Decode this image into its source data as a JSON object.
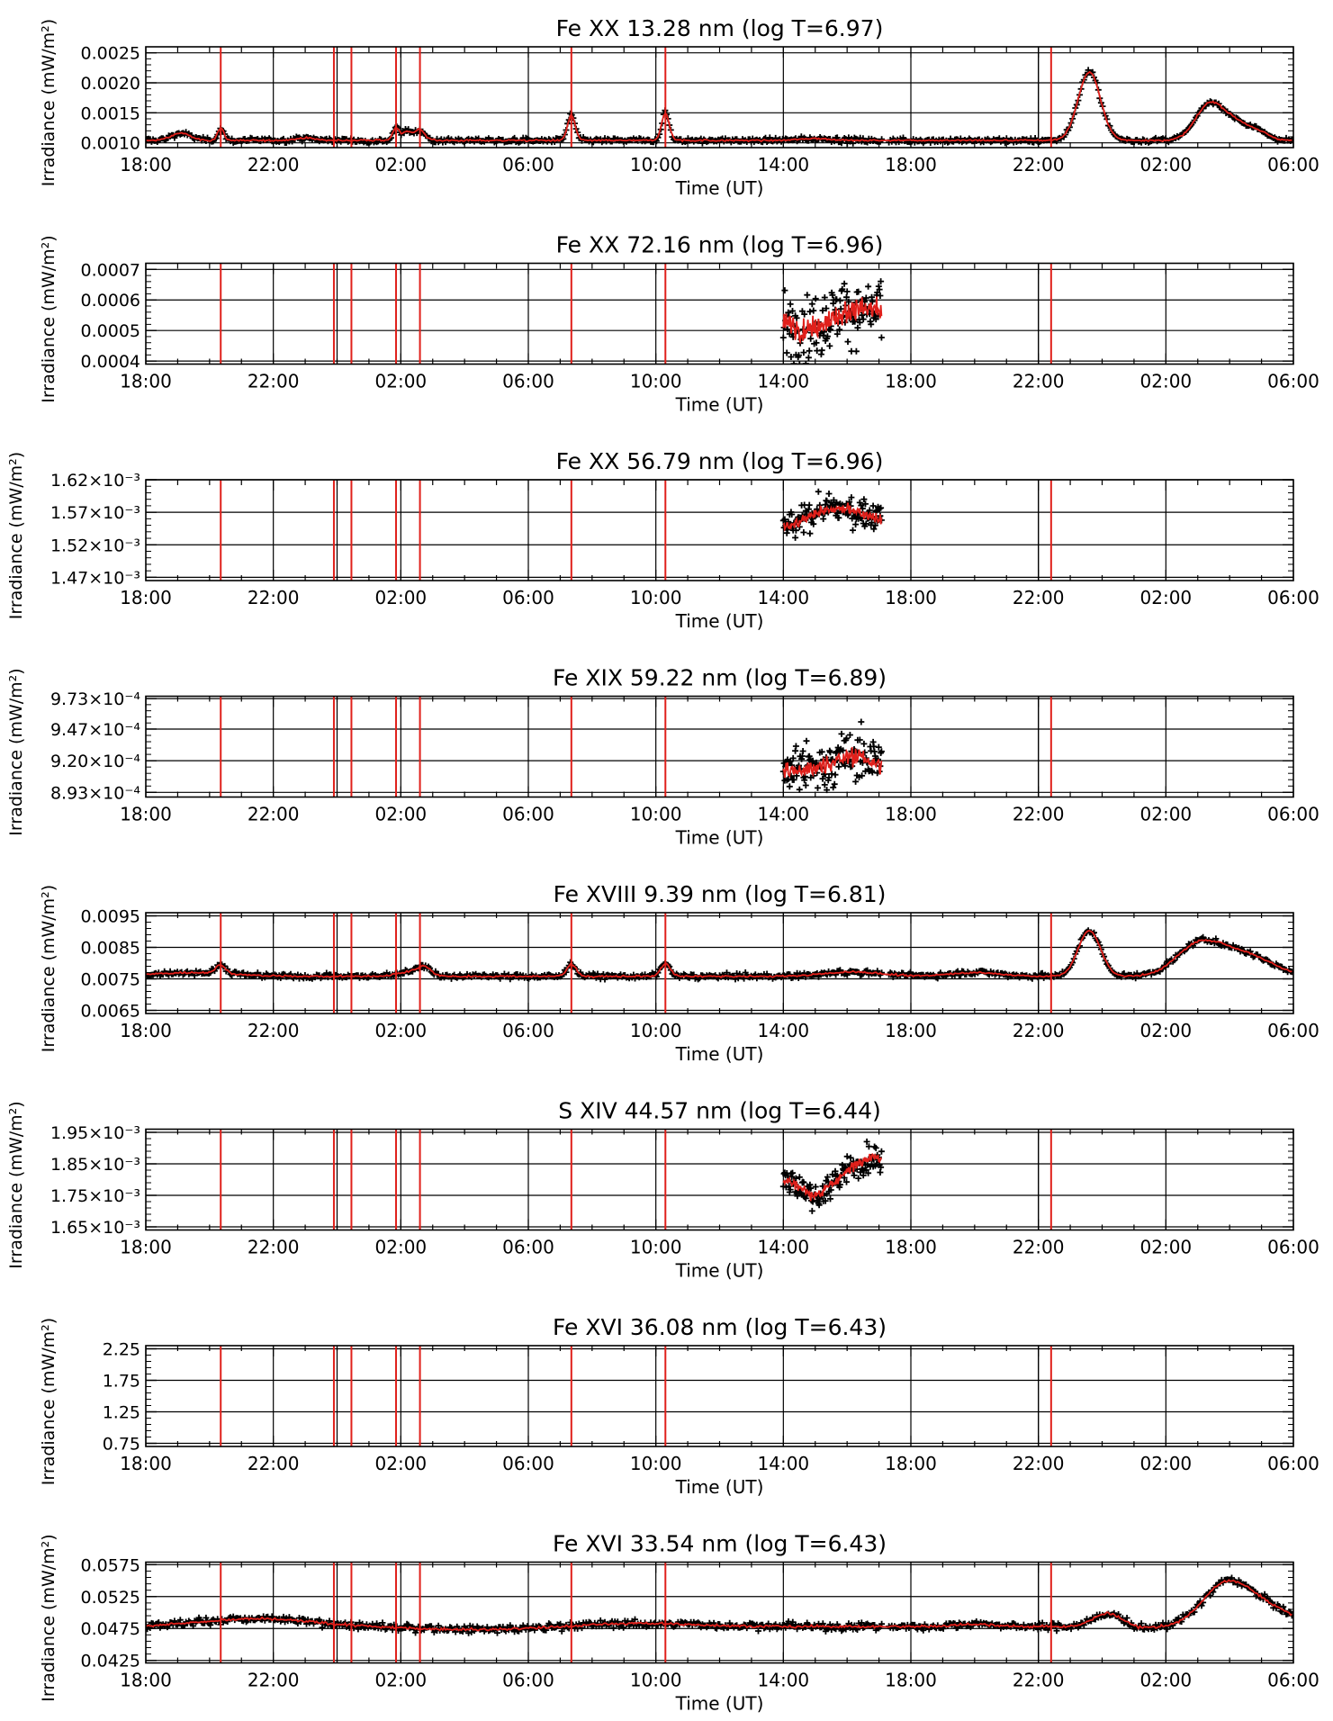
{
  "figure": {
    "xlabel": "Time (UT)",
    "ylabel": "Irradiance (mW/m²)",
    "x_tick_labels": [
      "18:00",
      "22:00",
      "02:00",
      "06:00",
      "10:00",
      "14:00",
      "18:00",
      "22:00",
      "02:00",
      "06:00"
    ],
    "x_range_hours": [
      0,
      36
    ],
    "grid_hours": [
      4,
      8,
      12,
      16,
      20,
      24,
      28,
      32
    ],
    "day_boundary_hours": [
      6.0,
      28.0
    ],
    "event_line_hours": [
      2.35,
      5.9,
      6.45,
      7.85,
      8.6,
      13.35,
      16.3,
      28.4
    ],
    "colors": {
      "data_points": "#000000",
      "smoothed_line": "#e0201b",
      "event_lines": "#e0201b",
      "grid": "#000000"
    }
  },
  "chart_data": [
    {
      "type": "scatter",
      "title": "Fe XX 13.28 nm (log T=6.97)",
      "xlabel": "Time (UT)",
      "ylabel": "Irradiance (mW/m²)",
      "ylim": [
        0.00092,
        0.0026
      ],
      "yticks": [
        0.001,
        0.0015,
        0.002,
        0.0025
      ],
      "ytick_labels": [
        "0.0010",
        "0.0015",
        "0.0020",
        "0.0025"
      ],
      "coverage_hours": [
        [
          0,
          36
        ]
      ],
      "noise": 2e-05,
      "series": [
        {
          "name": "",
          "baseline": 0.00104,
          "peaks": [
            [
              1.1,
              0.00012,
              0.3
            ],
            [
              2.35,
              0.0002,
              0.1
            ],
            [
              5.0,
              4e-05,
              0.3
            ],
            [
              7.85,
              0.0002,
              0.1
            ],
            [
              8.2,
              0.00015,
              0.15
            ],
            [
              8.6,
              0.00018,
              0.15
            ],
            [
              13.35,
              0.00042,
              0.12
            ],
            [
              16.3,
              0.00045,
              0.12
            ],
            [
              21.0,
              3e-05,
              0.5
            ],
            [
              29.6,
              0.00114,
              0.35
            ],
            [
              33.4,
              0.00062,
              0.45
            ],
            [
              34.3,
              0.00025,
              0.4
            ],
            [
              35.0,
              0.0001,
              0.3
            ]
          ]
        }
      ]
    },
    {
      "type": "scatter",
      "title": "Fe XX 72.16 nm (log T=6.96)",
      "xlabel": "Time (UT)",
      "ylabel": "Irradiance (mW/m²)",
      "ylim": [
        0.00039,
        0.00072
      ],
      "yticks": [
        0.0004,
        0.0005,
        0.0006,
        0.0007
      ],
      "ytick_labels": [
        "0.0004",
        "0.0005",
        "0.0006",
        "0.0007"
      ],
      "coverage_hours": [
        [
          20.0,
          23.1
        ]
      ],
      "noise": 5.5e-05,
      "series": [
        {
          "name": "",
          "baseline": 0.00053,
          "peaks": [
            [
              22.5,
              4e-05,
              0.7
            ],
            [
              20.7,
              -3e-05,
              0.4
            ]
          ]
        }
      ]
    },
    {
      "type": "scatter",
      "title": "Fe XX 56.79 nm (log T=6.96)",
      "xlabel": "Time (UT)",
      "ylabel": "Irradiance (mW/m²)",
      "ylim": [
        0.001465,
        0.00162
      ],
      "yticks": [
        0.00147,
        0.00152,
        0.00157,
        0.00162
      ],
      "ytick_labels": [
        "1.47×10⁻³",
        "1.52×10⁻³",
        "1.57×10⁻³",
        "1.62×10⁻³"
      ],
      "coverage_hours": [
        [
          20.0,
          23.1
        ]
      ],
      "noise": 1.1e-05,
      "series": [
        {
          "name": "",
          "baseline": 0.00155,
          "peaks": [
            [
              21.7,
              2.5e-05,
              1.0
            ],
            [
              20.3,
              -1e-05,
              0.3
            ]
          ]
        }
      ]
    },
    {
      "type": "scatter",
      "title": "Fe XIX 59.22 nm (log T=6.89)",
      "xlabel": "Time (UT)",
      "ylabel": "Irradiance (mW/m²)",
      "ylim": [
        0.000889,
        0.000975
      ],
      "yticks": [
        0.000893,
        0.00092,
        0.000947,
        0.000973
      ],
      "ytick_labels": [
        "8.93×10⁻⁴",
        "9.20×10⁻⁴",
        "9.47×10⁻⁴",
        "9.73×10⁻⁴"
      ],
      "coverage_hours": [
        [
          20.0,
          23.1
        ]
      ],
      "noise": 1.1e-05,
      "series": [
        {
          "name": "",
          "baseline": 0.000912,
          "peaks": [
            [
              22.2,
              1.2e-05,
              0.6
            ]
          ]
        }
      ]
    },
    {
      "type": "scatter",
      "title": "Fe XVIII 9.39 nm (log T=6.81)",
      "xlabel": "Time (UT)",
      "ylabel": "Irradiance (mW/m²)",
      "ylim": [
        0.0064,
        0.0096
      ],
      "yticks": [
        0.0065,
        0.0075,
        0.0085,
        0.0095
      ],
      "ytick_labels": [
        "0.0065",
        "0.0075",
        "0.0085",
        "0.0095"
      ],
      "coverage_hours": [
        [
          0,
          36
        ]
      ],
      "noise": 4e-05,
      "series": [
        {
          "name": "",
          "baseline": 0.00758,
          "peaks": [
            [
              1.5,
              0.00012,
              1.2
            ],
            [
              2.35,
              0.00028,
              0.15
            ],
            [
              8.3,
              0.00015,
              0.4
            ],
            [
              8.75,
              0.00025,
              0.2
            ],
            [
              13.35,
              0.00038,
              0.15
            ],
            [
              16.3,
              0.0004,
              0.15
            ],
            [
              22.2,
              0.00014,
              0.9
            ],
            [
              26.0,
              0.00012,
              0.8
            ],
            [
              29.6,
              0.00145,
              0.35
            ],
            [
              33.0,
              0.0009,
              0.7
            ],
            [
              34.4,
              0.0007,
              0.9
            ]
          ]
        }
      ]
    },
    {
      "type": "scatter",
      "title": "S XIV 44.57 nm (log T=6.44)",
      "xlabel": "Time (UT)",
      "ylabel": "Irradiance (mW/m²)",
      "ylim": [
        0.00164,
        0.00196
      ],
      "yticks": [
        0.00165,
        0.00175,
        0.00185,
        0.00195
      ],
      "ytick_labels": [
        "1.65×10⁻³",
        "1.75×10⁻³",
        "1.85×10⁻³",
        "1.95×10⁻³"
      ],
      "coverage_hours": [
        [
          20.0,
          23.1
        ]
      ],
      "noise": 2.2e-05,
      "series": [
        {
          "name": "",
          "baseline": 0.0018,
          "peaks": [
            [
              22.8,
              7e-05,
              0.6
            ],
            [
              21.0,
              -5e-05,
              0.4
            ]
          ]
        }
      ]
    },
    {
      "type": "scatter",
      "title": "Fe XVI 36.08 nm (log T=6.43)",
      "xlabel": "Time (UT)",
      "ylabel": "Irradiance (mW/m²)",
      "ylim": [
        0.7,
        2.3
      ],
      "yticks": [
        0.75,
        1.25,
        1.75,
        2.25
      ],
      "ytick_labels": [
        "0.75",
        "1.25",
        "1.75",
        "2.25"
      ],
      "coverage_hours": [],
      "noise": 0,
      "series": []
    },
    {
      "type": "scatter",
      "title": "Fe XVI 33.54 nm (log T=6.43)",
      "xlabel": "Time (UT)",
      "ylabel": "Irradiance (mW/m²)",
      "ylim": [
        0.0421,
        0.0579
      ],
      "yticks": [
        0.0425,
        0.0475,
        0.0525,
        0.0575
      ],
      "ytick_labels": [
        "0.0425",
        "0.0475",
        "0.0525",
        "0.0575"
      ],
      "coverage_hours": [
        [
          0,
          36
        ]
      ],
      "noise": 0.00028,
      "series": [
        {
          "name": "",
          "baseline": 0.0478,
          "peaks": [
            [
              3.5,
              0.0012,
              1.8
            ],
            [
              11.0,
              -0.0005,
              2.5
            ],
            [
              15.0,
              0.0006,
              2.0
            ],
            [
              26.0,
              0.0004,
              0.6
            ],
            [
              30.2,
              0.0022,
              0.45
            ],
            [
              31.0,
              -0.0003,
              0.6
            ],
            [
              33.8,
              0.0048,
              0.7
            ],
            [
              34.8,
              0.0036,
              1.0
            ]
          ]
        }
      ]
    }
  ]
}
